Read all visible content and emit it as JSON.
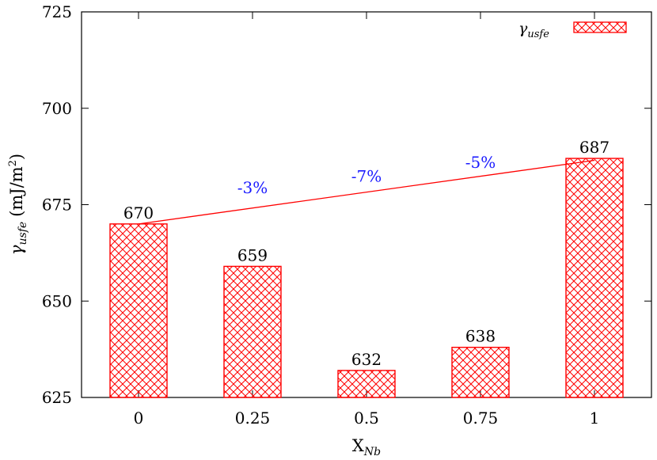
{
  "chart_data": {
    "type": "bar",
    "categories": [
      "0",
      "0.25",
      "0.5",
      "0.75",
      "1"
    ],
    "values": [
      670,
      659,
      632,
      638,
      687
    ],
    "value_labels": [
      "670",
      "659",
      "632",
      "638",
      "687"
    ],
    "ylim": [
      625,
      725
    ],
    "yticks": [
      625,
      650,
      675,
      700,
      725
    ],
    "ytick_labels": [
      "625",
      "650",
      "675",
      "700",
      "725"
    ],
    "xlabel": {
      "base": "X",
      "sub": "Nb"
    },
    "ylabel": {
      "symbol": "γ",
      "sub": "usfe",
      "unit_pre": "(mJ/m",
      "unit_sup": "2",
      "unit_post": ")"
    },
    "legend": {
      "symbol": "γ",
      "sub": "usfe",
      "position": "top-right"
    },
    "bar_color": "#ff0000",
    "bar_fill": "crosshatch",
    "trend_line": {
      "from_category": "0",
      "from_value": 670,
      "to_category": "1",
      "to_value": 686.5,
      "color": "#ff0000"
    },
    "annotations": [
      {
        "text": "-3%",
        "x": 0.25,
        "y": 678
      },
      {
        "text": "-7%",
        "x": 0.5,
        "y": 681
      },
      {
        "text": "-5%",
        "x": 0.75,
        "y": 684.5
      }
    ],
    "annotation_color": "#1a1aff",
    "grid": false
  }
}
